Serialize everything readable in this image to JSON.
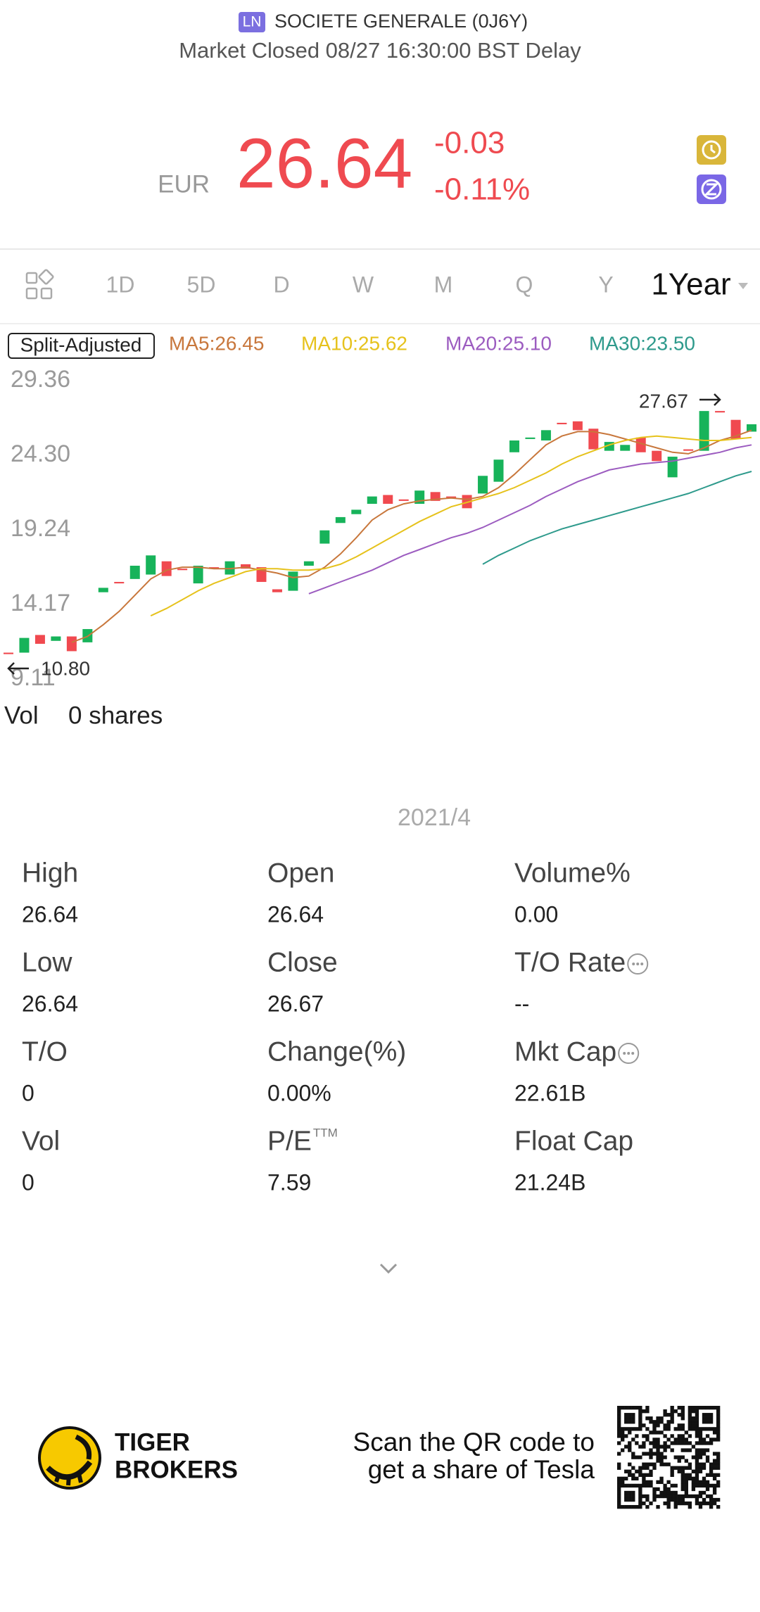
{
  "header": {
    "exchange": "LN",
    "name": "SOCIETE GENERALE (0J6Y)",
    "status": "Market Closed 08/27 16:30:00 BST Delay"
  },
  "quote": {
    "currency": "EUR",
    "price": "26.64",
    "change": "-0.03",
    "change_pct": "-0.11%"
  },
  "tabs": [
    "1D",
    "5D",
    "D",
    "W",
    "M",
    "Q",
    "Y",
    "1Year"
  ],
  "chart_data": {
    "type": "candlestick",
    "badge": "Split-Adjusted",
    "ylim": [
      8.4,
      30.1
    ],
    "yticks": [
      29.36,
      {
        "value": 24.3,
        "label": "24.30"
      },
      19.24,
      14.17,
      9.11
    ],
    "up_color": "#17b35a",
    "down_color": "#f0494f",
    "open": [
      10.9,
      10.9,
      12.1,
      11.7,
      12.0,
      11.6,
      15.0,
      15.7,
      15.9,
      16.2,
      17.1,
      16.6,
      15.6,
      16.7,
      16.2,
      16.9,
      16.7,
      15.2,
      15.1,
      16.8,
      18.3,
      19.7,
      20.3,
      21.0,
      21.6,
      21.3,
      21.0,
      21.8,
      21.5,
      21.6,
      21.7,
      22.5,
      24.5,
      25.4,
      25.3,
      26.5,
      26.6,
      26.1,
      24.6,
      24.6,
      25.5,
      24.6,
      22.8,
      24.7,
      24.6,
      27.3,
      26.7,
      25.9
    ],
    "close": [
      10.8,
      11.9,
      11.5,
      12.0,
      11.0,
      12.5,
      15.3,
      15.6,
      16.8,
      17.5,
      16.1,
      16.5,
      16.8,
      16.6,
      17.1,
      16.6,
      15.7,
      15.0,
      16.4,
      17.1,
      19.2,
      20.1,
      20.6,
      21.5,
      21.0,
      21.2,
      21.9,
      21.2,
      21.4,
      20.7,
      22.9,
      24.0,
      25.3,
      25.5,
      26.0,
      26.4,
      26.0,
      24.7,
      25.2,
      25.0,
      24.5,
      23.9,
      24.2,
      24.6,
      27.3,
      27.2,
      25.4,
      26.4
    ],
    "series": [
      {
        "name": "MA5:26.45",
        "color": "#c8773c",
        "values": [
          null,
          null,
          null,
          null,
          11.6,
          12.0,
          12.8,
          13.7,
          14.8,
          15.9,
          16.5,
          16.7,
          16.7,
          16.6,
          16.6,
          16.7,
          16.5,
          16.3,
          16.0,
          16.1,
          16.7,
          17.6,
          18.7,
          19.9,
          20.6,
          21.0,
          21.2,
          21.3,
          21.4,
          21.3,
          21.5,
          22.1,
          23.0,
          24.0,
          25.0,
          25.6,
          25.9,
          25.9,
          25.7,
          25.4,
          25.1,
          24.8,
          24.5,
          24.4,
          24.8,
          25.3,
          25.6,
          26.0
        ]
      },
      {
        "name": "MA10:25.62",
        "color": "#e6c21c",
        "values": [
          null,
          null,
          null,
          null,
          null,
          null,
          null,
          null,
          null,
          13.4,
          13.9,
          14.5,
          15.1,
          15.6,
          16.0,
          16.4,
          16.6,
          16.6,
          16.5,
          16.5,
          16.6,
          16.9,
          17.4,
          18.0,
          18.6,
          19.2,
          19.8,
          20.3,
          20.8,
          21.1,
          21.4,
          21.7,
          22.1,
          22.6,
          23.1,
          23.7,
          24.2,
          24.6,
          25.0,
          25.3,
          25.5,
          25.6,
          25.5,
          25.4,
          25.3,
          25.3,
          25.4,
          25.5
        ]
      },
      {
        "name": "MA20:25.10",
        "color": "#9c5cc0",
        "values": [
          null,
          null,
          null,
          null,
          null,
          null,
          null,
          null,
          null,
          null,
          null,
          null,
          null,
          null,
          null,
          null,
          null,
          null,
          null,
          14.9,
          15.3,
          15.7,
          16.1,
          16.5,
          17.0,
          17.5,
          17.9,
          18.3,
          18.7,
          19.0,
          19.4,
          19.9,
          20.4,
          20.9,
          21.5,
          22.0,
          22.5,
          22.9,
          23.3,
          23.5,
          23.7,
          23.8,
          23.9,
          24.1,
          24.3,
          24.5,
          24.8,
          25.0
        ]
      },
      {
        "name": "MA30:23.50",
        "color": "#2e9a8c",
        "values": [
          null,
          null,
          null,
          null,
          null,
          null,
          null,
          null,
          null,
          null,
          null,
          null,
          null,
          null,
          null,
          null,
          null,
          null,
          null,
          null,
          null,
          null,
          null,
          null,
          null,
          null,
          null,
          null,
          null,
          null,
          16.9,
          17.5,
          18.0,
          18.5,
          18.9,
          19.3,
          19.6,
          19.9,
          20.2,
          20.5,
          20.8,
          21.1,
          21.4,
          21.7,
          22.1,
          22.5,
          22.9,
          23.2
        ]
      }
    ],
    "annotations": [
      "27.67",
      "10.80"
    ]
  },
  "volume": {
    "label": "Vol",
    "value": "0 shares"
  },
  "period": "2021/4",
  "stats": [
    {
      "label": "High",
      "value": "26.64"
    },
    {
      "label": "Open",
      "value": "26.64"
    },
    {
      "label": "Volume%",
      "value": "0.00"
    },
    {
      "label": "Low",
      "value": "26.64"
    },
    {
      "label": "Close",
      "value": "26.67"
    },
    {
      "label": "T/O Rate",
      "value": "--",
      "info": true
    },
    {
      "label": "T/O",
      "value": "0"
    },
    {
      "label": "Change(%)",
      "value": "0.00%"
    },
    {
      "label": "Mkt Cap",
      "value": "22.61B",
      "info": true
    },
    {
      "label": "Vol",
      "value": "0"
    },
    {
      "label": "P/E",
      "sup": "TTM",
      "value": "7.59"
    },
    {
      "label": "Float Cap",
      "value": "21.24B"
    }
  ],
  "footer": {
    "brand": [
      "TIGER",
      "BROKERS"
    ],
    "promo": [
      "Scan the QR code to",
      "get a share of Tesla"
    ]
  }
}
